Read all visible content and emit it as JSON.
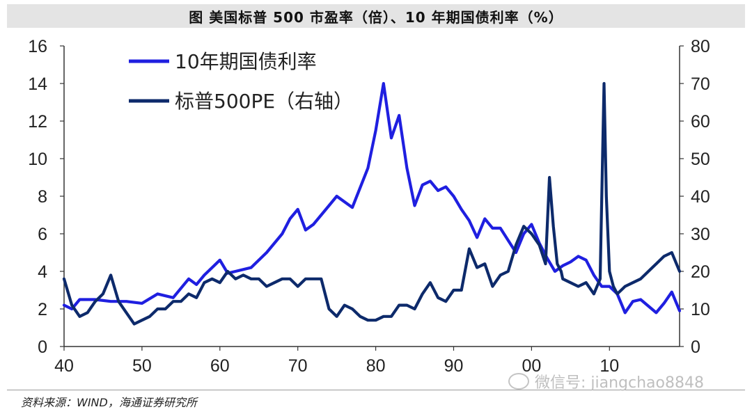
{
  "title": "图  美国标普 500 市盈率（倍）、10 年期国债利率（%）",
  "source": "资料来源：WIND，海通证券研究所",
  "watermark": "微信号: jiangchao8848",
  "colors": {
    "yield": "#1f1fe0",
    "pe": "#0d2a6b",
    "axis": "#333333"
  },
  "chart_data": {
    "type": "line",
    "title": "美国标普 500 市盈率（倍）、10 年期国债利率（%）",
    "xlabel": "",
    "ylabel": "",
    "y2label": "",
    "xlim": [
      1940,
      2019
    ],
    "ylim": [
      0,
      16
    ],
    "y2lim": [
      0,
      80
    ],
    "xticks": [
      1940,
      1950,
      1960,
      1970,
      1980,
      1990,
      2000,
      2010
    ],
    "xtick_labels": [
      "40",
      "50",
      "60",
      "70",
      "80",
      "90",
      "00",
      "10"
    ],
    "yticks": [
      0,
      2,
      4,
      6,
      8,
      10,
      12,
      14,
      16
    ],
    "ytick_labels": [
      "0",
      "2",
      "4",
      "6",
      "8",
      "10",
      "12",
      "14",
      "16"
    ],
    "y2ticks": [
      0,
      10,
      20,
      30,
      40,
      50,
      60,
      70,
      80
    ],
    "y2tick_labels": [
      "0",
      "10",
      "20",
      "30",
      "40",
      "50",
      "60",
      "70",
      "80"
    ],
    "legend_position": "top-left",
    "series": [
      {
        "name": "10年期国债利率",
        "axis": "left",
        "color": "#1f1fe0",
        "x": [
          1940,
          1941,
          1942,
          1944,
          1946,
          1948,
          1950,
          1952,
          1954,
          1956,
          1957,
          1958,
          1960,
          1961,
          1962,
          1964,
          1966,
          1968,
          1969,
          1970,
          1971,
          1972,
          1974,
          1975,
          1977,
          1979,
          1980,
          1981,
          1982,
          1983,
          1984,
          1985,
          1986,
          1987,
          1988,
          1989,
          1990,
          1991,
          1992,
          1993,
          1994,
          1995,
          1996,
          1998,
          1999,
          2000,
          2001,
          2002,
          2003,
          2004,
          2005,
          2006,
          2007,
          2008,
          2009,
          2010,
          2011,
          2012,
          2013,
          2014,
          2016,
          2017,
          2018,
          2019
        ],
        "values": [
          2.2,
          2.0,
          2.5,
          2.5,
          2.4,
          2.4,
          2.3,
          2.8,
          2.6,
          3.6,
          3.3,
          3.8,
          4.6,
          3.9,
          4.0,
          4.2,
          5.0,
          6.0,
          6.8,
          7.3,
          6.2,
          6.5,
          7.5,
          8.0,
          7.4,
          9.5,
          11.5,
          14.0,
          11.1,
          12.3,
          9.5,
          7.5,
          8.6,
          8.8,
          8.3,
          8.5,
          8.0,
          7.3,
          6.7,
          5.8,
          6.8,
          6.3,
          6.3,
          5.0,
          6.0,
          6.5,
          5.5,
          4.7,
          4.0,
          4.3,
          4.5,
          4.8,
          4.6,
          3.8,
          3.2,
          3.2,
          2.8,
          1.8,
          2.4,
          2.5,
          1.8,
          2.3,
          2.9,
          1.9
        ]
      },
      {
        "name": "标普500PE（右轴）",
        "axis": "right",
        "color": "#0d2a6b",
        "x": [
          1940,
          1941,
          1942,
          1943,
          1944,
          1945,
          1946,
          1947,
          1948,
          1949,
          1950,
          1951,
          1952,
          1953,
          1954,
          1955,
          1956,
          1957,
          1958,
          1959,
          1960,
          1961,
          1962,
          1963,
          1964,
          1965,
          1966,
          1967,
          1968,
          1969,
          1970,
          1971,
          1972,
          1973,
          1974,
          1975,
          1976,
          1977,
          1978,
          1979,
          1980,
          1981,
          1982,
          1983,
          1984,
          1985,
          1986,
          1987,
          1988,
          1989,
          1990,
          1991,
          1992,
          1993,
          1994,
          1995,
          1996,
          1997,
          1998,
          1999,
          2000,
          2001,
          2001.8,
          2002.3,
          2002.8,
          2003.3,
          2003.8,
          2004,
          2005,
          2006,
          2007,
          2008,
          2008.8,
          2009.3,
          2009.6,
          2010,
          2010.5,
          2011,
          2012,
          2013,
          2014,
          2015,
          2016,
          2017,
          2018,
          2019
        ],
        "values": [
          18,
          11,
          8,
          9,
          12,
          14,
          19,
          12,
          9,
          6,
          7,
          8,
          10,
          10,
          12,
          12,
          14,
          13,
          17,
          18,
          17,
          20,
          18,
          19,
          18,
          18,
          16,
          17,
          18,
          18,
          16,
          18,
          18,
          18,
          10,
          8,
          11,
          10,
          8,
          7,
          7,
          8,
          8,
          11,
          11,
          10,
          14,
          17,
          13,
          12,
          15,
          15,
          26,
          21,
          22,
          16,
          19,
          20,
          27,
          32,
          30,
          27,
          22,
          45,
          32,
          22,
          20,
          18,
          17,
          16,
          17,
          14,
          18,
          70,
          40,
          20,
          16,
          14,
          16,
          17,
          18,
          20,
          22,
          24,
          25,
          20
        ]
      }
    ]
  }
}
